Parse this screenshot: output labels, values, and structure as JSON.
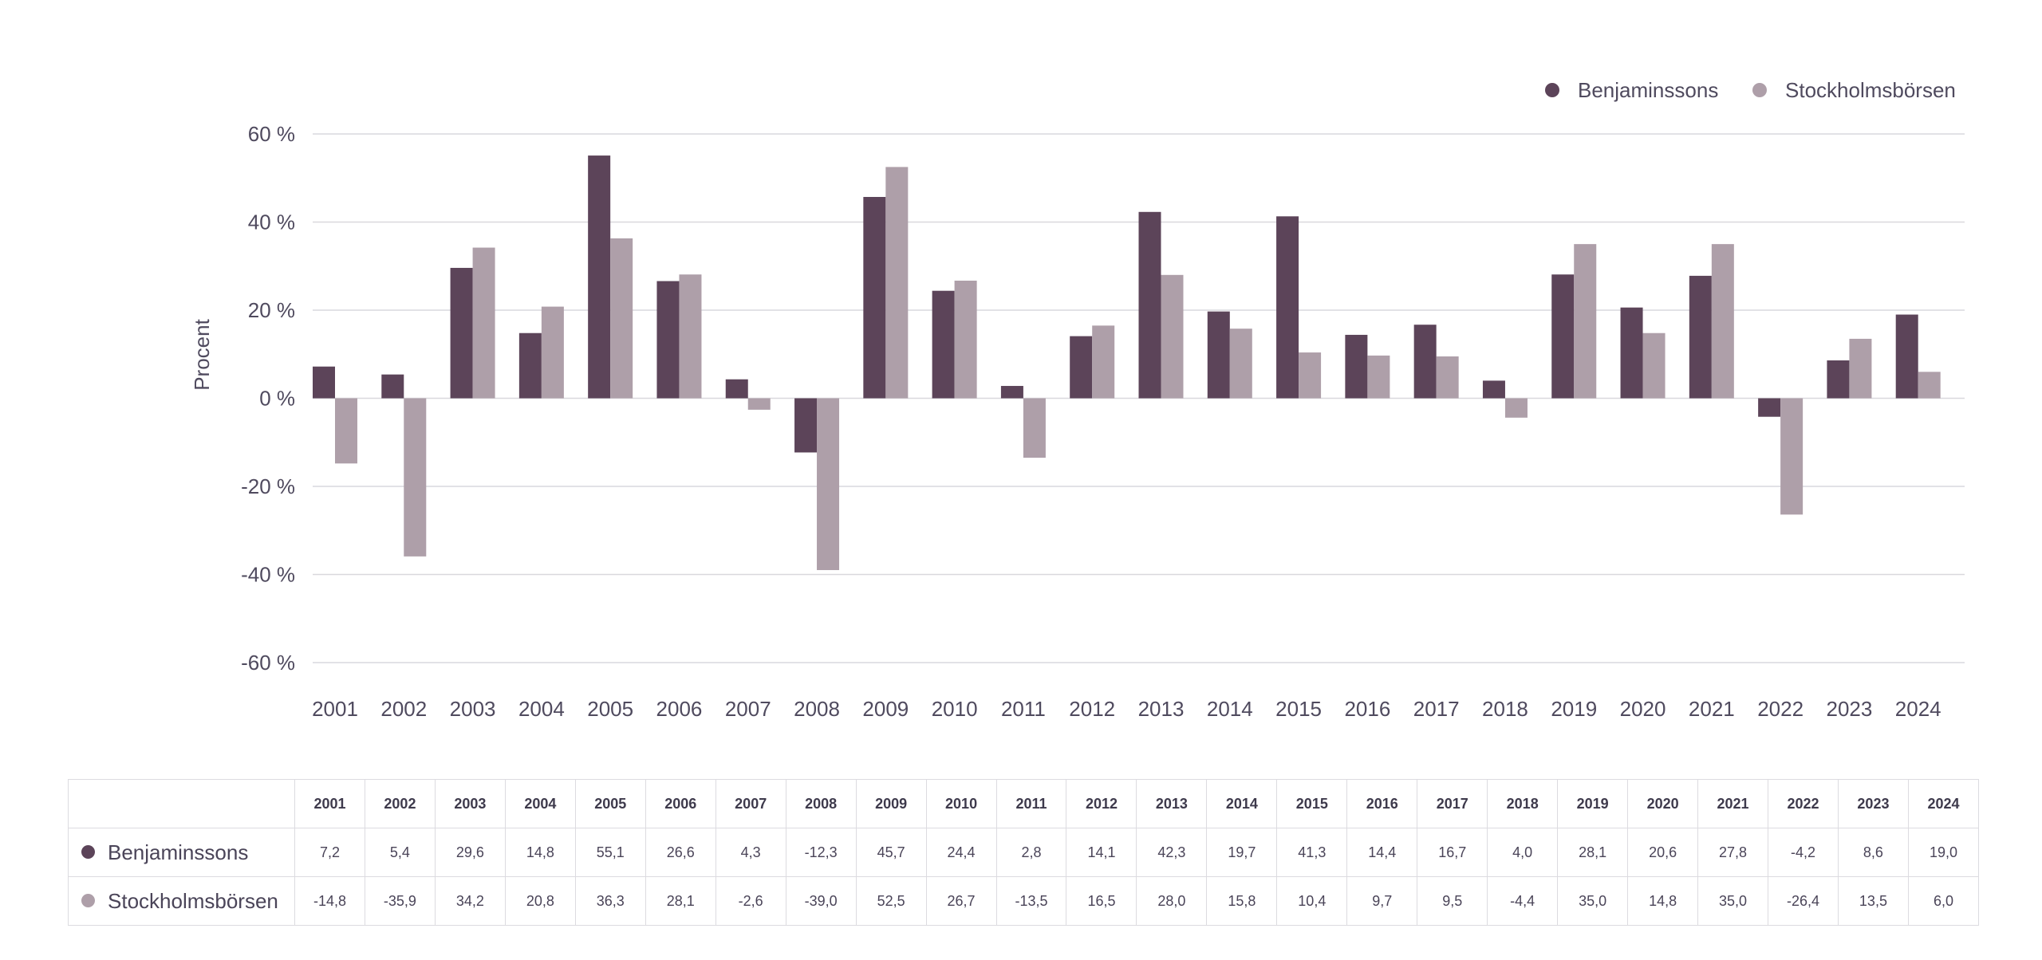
{
  "chart_data": {
    "type": "bar",
    "title": "",
    "xlabel": "",
    "ylabel": "Procent",
    "ylim": [
      -60,
      60
    ],
    "yticks": [
      60,
      40,
      20,
      0,
      -20,
      -40,
      -60
    ],
    "ytick_labels": [
      "60 %",
      "40 %",
      "20 %",
      "0 %",
      "-20 %",
      "-40 %",
      "-60 %"
    ],
    "grid": true,
    "legend_position": "top-right",
    "categories": [
      "2001",
      "2002",
      "2003",
      "2004",
      "2005",
      "2006",
      "2007",
      "2008",
      "2009",
      "2010",
      "2011",
      "2012",
      "2013",
      "2014",
      "2015",
      "2016",
      "2017",
      "2018",
      "2019",
      "2020",
      "2021",
      "2022",
      "2023",
      "2024"
    ],
    "series": [
      {
        "name": "Benjaminssons",
        "color": "#5c4459",
        "values": [
          7.2,
          5.4,
          29.6,
          14.8,
          55.1,
          26.6,
          4.3,
          -12.3,
          45.7,
          24.4,
          2.8,
          14.1,
          42.3,
          19.7,
          41.3,
          14.4,
          16.7,
          4.0,
          28.1,
          20.6,
          27.8,
          -4.2,
          8.6,
          19.0
        ],
        "labels": [
          "7,2",
          "5,4",
          "29,6",
          "14,8",
          "55,1",
          "26,6",
          "4,3",
          "-12,3",
          "45,7",
          "24,4",
          "2,8",
          "14,1",
          "42,3",
          "19,7",
          "41,3",
          "14,4",
          "16,7",
          "4,0",
          "28,1",
          "20,6",
          "27,8",
          "-4,2",
          "8,6",
          "19,0"
        ]
      },
      {
        "name": "Stockholmsbörsen",
        "color": "#ae9fa9",
        "values": [
          -14.8,
          -35.9,
          34.2,
          20.8,
          36.3,
          28.1,
          -2.6,
          -39.0,
          52.5,
          26.7,
          -13.5,
          16.5,
          28.0,
          15.8,
          10.4,
          9.7,
          9.5,
          -4.4,
          35.0,
          14.8,
          35.0,
          -26.4,
          13.5,
          6.0
        ],
        "labels": [
          "-14,8",
          "-35,9",
          "34,2",
          "20,8",
          "36,3",
          "28,1",
          "-2,6",
          "-39,0",
          "52,5",
          "26,7",
          "-13,5",
          "16,5",
          "28,0",
          "15,8",
          "10,4",
          "9,7",
          "9,5",
          "-4,4",
          "35,0",
          "14,8",
          "35,0",
          "-26,4",
          "13,5",
          "6,0"
        ]
      }
    ]
  }
}
